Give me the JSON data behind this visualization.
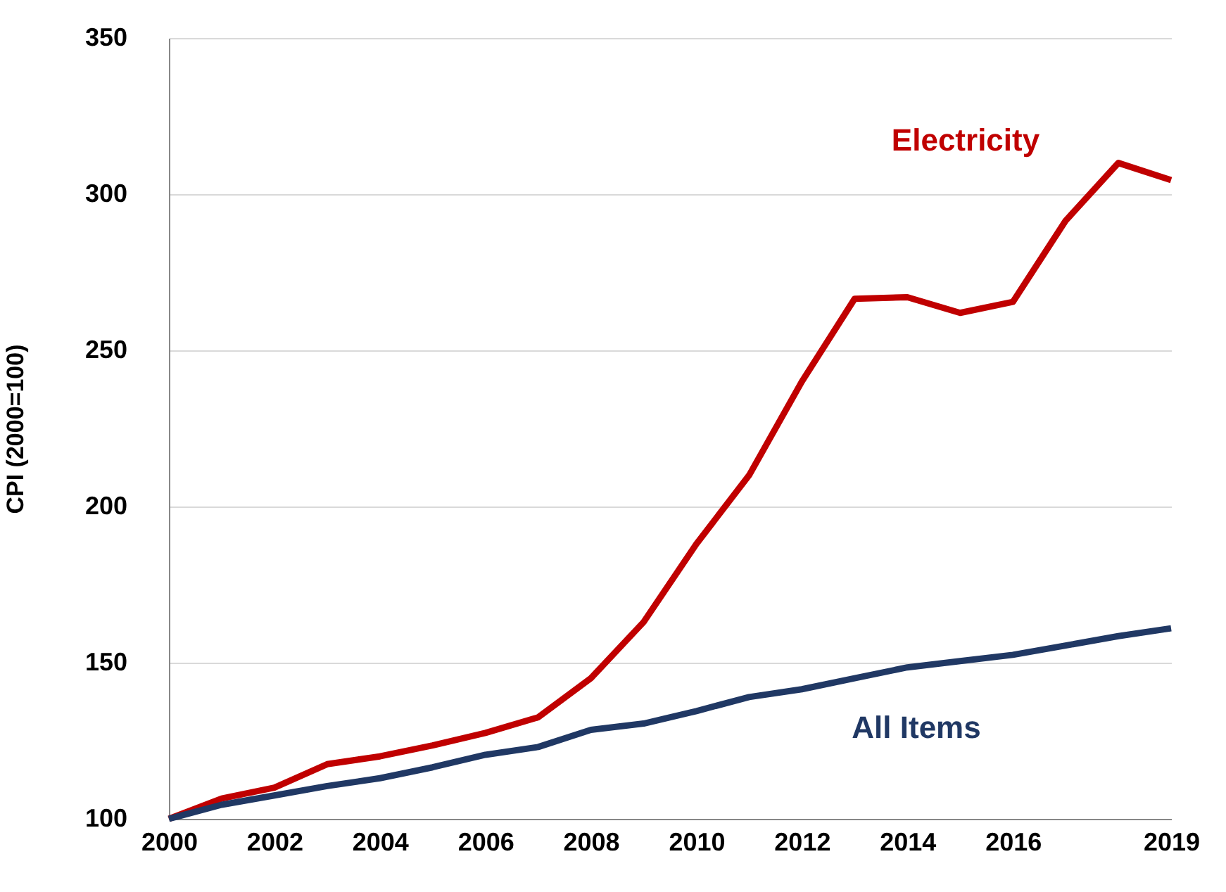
{
  "chart_data": {
    "type": "line",
    "ylabel": "CPI (2000=100)",
    "x": [
      2000,
      2001,
      2002,
      2003,
      2004,
      2005,
      2006,
      2007,
      2008,
      2009,
      2010,
      2011,
      2012,
      2013,
      2014,
      2015,
      2016,
      2017,
      2018,
      2019
    ],
    "series": [
      {
        "name": "Electricity",
        "color": "#c00000",
        "values": [
          100,
          106.5,
          110,
          117.5,
          120,
          123.5,
          127.5,
          132.5,
          145,
          163,
          188,
          210,
          240,
          266.5,
          267,
          262,
          265.5,
          291.5,
          310,
          304.5
        ]
      },
      {
        "name": "All Items",
        "color": "#203864",
        "values": [
          100,
          104.5,
          107.5,
          110.5,
          113,
          116.5,
          120.5,
          123,
          128.5,
          130.5,
          134.5,
          139,
          141.5,
          145,
          148.5,
          150.5,
          152.5,
          155.5,
          158.5,
          161
        ]
      }
    ],
    "xlim": [
      2000,
      2019
    ],
    "xticks": [
      2000,
      2002,
      2004,
      2006,
      2008,
      2010,
      2012,
      2014,
      2016,
      2019
    ],
    "ylim": [
      100,
      350
    ],
    "yticks": [
      100,
      150,
      200,
      250,
      300,
      350
    ],
    "grid": "y",
    "legend": false,
    "marker": "none",
    "line_style": "solid"
  }
}
